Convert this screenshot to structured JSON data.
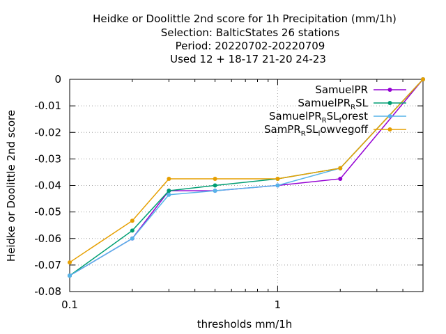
{
  "chart_data": {
    "type": "line",
    "title_lines": [
      "Heidke or Doolittle 2nd score  for 1h Precipitation (mm/1h)",
      "Selection: BalticStates      26 stations",
      "Period: 20220702-20220709",
      "Used  12 + 18-17 21-20 24-23"
    ],
    "xlabel": "thresholds mm/1h",
    "ylabel": "Heidke or Doolittle 2nd score",
    "x_scale": "log",
    "xlim": [
      0.1,
      5
    ],
    "ylim": [
      -0.08,
      0
    ],
    "x_ticks": [
      {
        "value": 0.1,
        "label": "0.1"
      },
      {
        "value": 1,
        "label": "1"
      }
    ],
    "y_ticks": [
      {
        "value": 0,
        "label": "0"
      },
      {
        "value": -0.01,
        "label": "-0.01"
      },
      {
        "value": -0.02,
        "label": "-0.02"
      },
      {
        "value": -0.03,
        "label": "-0.03"
      },
      {
        "value": -0.04,
        "label": "-0.04"
      },
      {
        "value": -0.05,
        "label": "-0.05"
      },
      {
        "value": -0.06,
        "label": "-0.06"
      },
      {
        "value": -0.07,
        "label": "-0.07"
      },
      {
        "value": -0.08,
        "label": "-0.08"
      }
    ],
    "grid": true,
    "legend_position": "top-right",
    "x": [
      0.1,
      0.2,
      0.3,
      0.5,
      1,
      2,
      5
    ],
    "series": [
      {
        "name": "SamuelPR",
        "legend_parts": [
          "SamuelPR"
        ],
        "color": "#9400d3",
        "values": [
          -0.074,
          -0.06,
          -0.042,
          -0.042,
          -0.04,
          -0.0375,
          0
        ]
      },
      {
        "name": "SamuelPR_R SL",
        "legend_parts": [
          "SamuelPR",
          "R",
          "SL"
        ],
        "color": "#009e73",
        "values": [
          -0.074,
          -0.057,
          -0.042,
          -0.04,
          -0.0375,
          -0.0335,
          0
        ]
      },
      {
        "name": "SamuelPR_R SL_forest",
        "legend_parts": [
          "SamuelPR",
          "R",
          "SL",
          "f",
          "orest"
        ],
        "color": "#56b4e9",
        "values": [
          -0.074,
          -0.06,
          -0.0435,
          -0.042,
          -0.04,
          -0.0335,
          0
        ]
      },
      {
        "name": "SamPR_R SL_lowvegoff",
        "legend_parts": [
          "SamPR",
          "R",
          "SL",
          "l",
          "owvegoff"
        ],
        "color": "#e69f00",
        "values": [
          -0.069,
          -0.0533,
          -0.0375,
          -0.0375,
          -0.0375,
          -0.0335,
          0
        ]
      }
    ]
  }
}
